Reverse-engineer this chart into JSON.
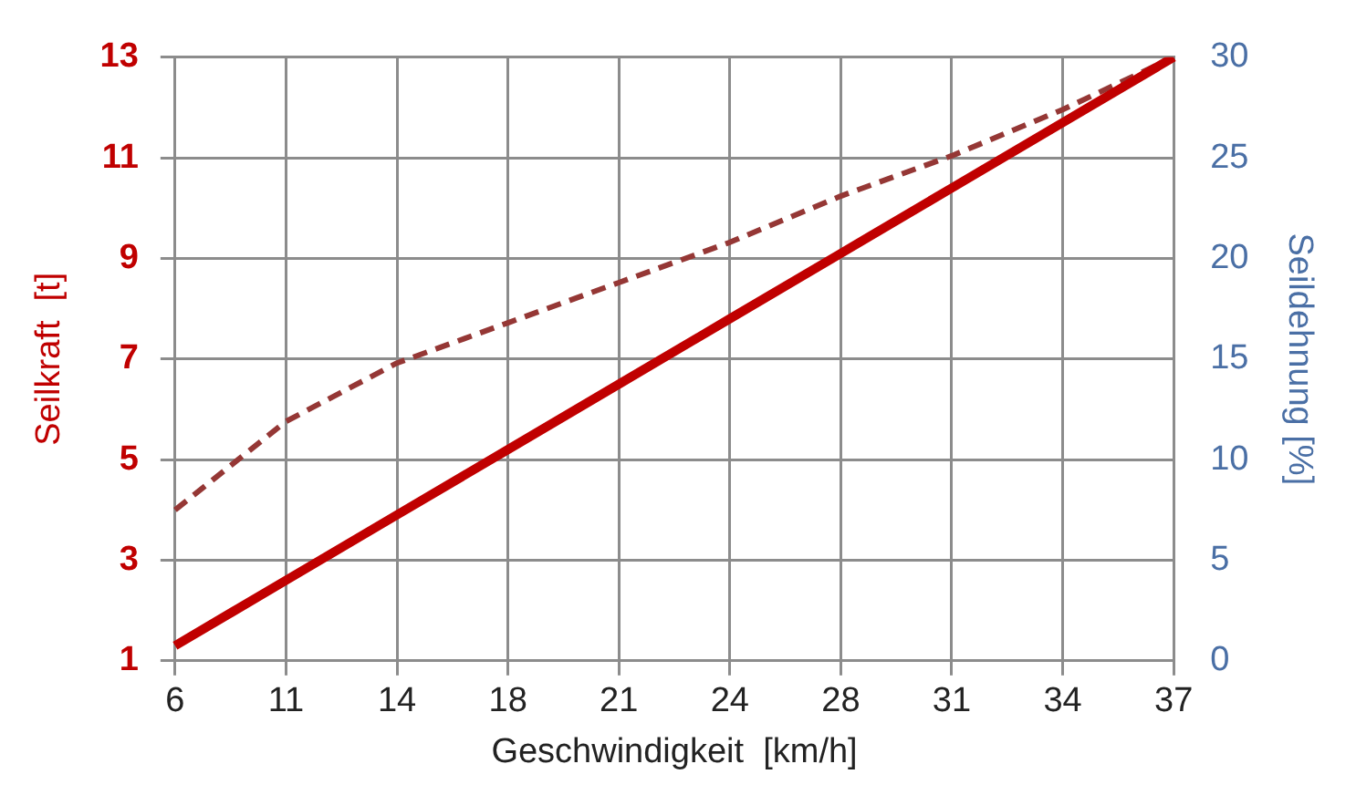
{
  "chart_data": {
    "type": "line",
    "xlabel": "Geschwindigkeit  [km/h]",
    "ylabel": "Seilkraft  [t]",
    "y2label": "Seildehnung [%]",
    "categories": [
      "6",
      "11",
      "14",
      "18",
      "21",
      "24",
      "28",
      "31",
      "34",
      "37"
    ],
    "series": [
      {
        "color": "#c00000",
        "values": [
          1.3,
          2.6,
          3.9,
          5.2,
          6.5,
          7.8,
          9.1,
          10.4,
          11.7,
          13.0
        ],
        "line_style": "solid"
      },
      {
        "color": "#953735",
        "axis": "y2",
        "values": [
          7.5,
          11.9,
          14.8,
          16.8,
          18.8,
          20.8,
          23.1,
          25.1,
          27.4,
          30
        ],
        "line_style": "dashed"
      }
    ],
    "ylim": [
      1,
      13
    ],
    "yticks": [
      1,
      3,
      5,
      7,
      9,
      11,
      13
    ],
    "y2lim": [
      0,
      30
    ],
    "y2ticks": [
      0,
      5,
      10,
      15,
      20,
      25,
      30
    ],
    "grid": true,
    "legend": false,
    "marker": "none"
  }
}
